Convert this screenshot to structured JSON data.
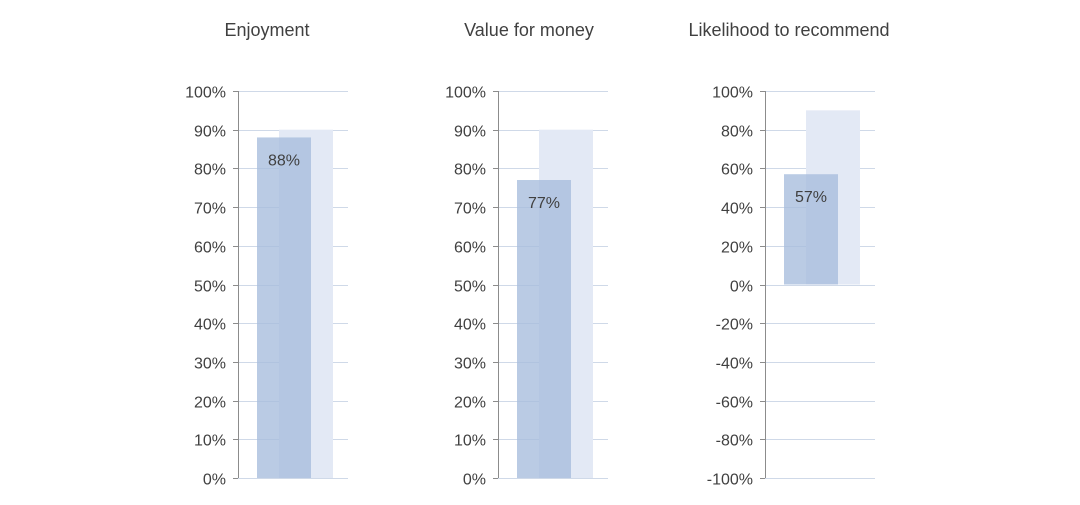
{
  "colors": {
    "target": "#e3e9f5",
    "actual": "#a7bcdd",
    "actual_overlap": "#b8cbe4",
    "grid": "#cfd9e8",
    "axis": "#8c8c8c",
    "text": "#404040"
  },
  "chart_data": [
    {
      "type": "bar",
      "title": "Enjoyment",
      "series": [
        {
          "name": "",
          "values": [
            0.88
          ]
        },
        {
          "name": "",
          "values": [
            0.9
          ]
        }
      ],
      "data_label": "88%",
      "ylim": [
        0,
        1
      ],
      "ticks": [
        0,
        0.1,
        0.2,
        0.3,
        0.4,
        0.5,
        0.6,
        0.7,
        0.8,
        0.9,
        1
      ],
      "tick_labels": [
        "0%",
        "10%",
        "20%",
        "30%",
        "40%",
        "50%",
        "60%",
        "70%",
        "80%",
        "90%",
        "100%"
      ],
      "grid": true
    },
    {
      "type": "bar",
      "title": "Value for money",
      "series": [
        {
          "name": "",
          "values": [
            0.77
          ]
        },
        {
          "name": "",
          "values": [
            0.9
          ]
        }
      ],
      "data_label": "77%",
      "ylim": [
        0,
        1
      ],
      "ticks": [
        0,
        0.1,
        0.2,
        0.3,
        0.4,
        0.5,
        0.6,
        0.7,
        0.8,
        0.9,
        1
      ],
      "tick_labels": [
        "0%",
        "10%",
        "20%",
        "30%",
        "40%",
        "50%",
        "60%",
        "70%",
        "80%",
        "90%",
        "100%"
      ],
      "grid": true
    },
    {
      "type": "bar",
      "title": "Likelihood to recommend",
      "series": [
        {
          "name": "",
          "values": [
            0.57
          ]
        },
        {
          "name": "",
          "values": [
            0.9
          ]
        }
      ],
      "data_label": "57%",
      "ylim": [
        -1,
        1
      ],
      "ticks": [
        -1,
        -0.8,
        -0.6,
        -0.4,
        -0.2,
        0,
        0.2,
        0.4,
        0.6,
        0.8,
        1
      ],
      "tick_labels": [
        "-100%",
        "-80%",
        "-60%",
        "-40%",
        "-20%",
        "0%",
        "20%",
        "40%",
        "60%",
        "80%",
        "100%"
      ],
      "grid": true
    }
  ]
}
